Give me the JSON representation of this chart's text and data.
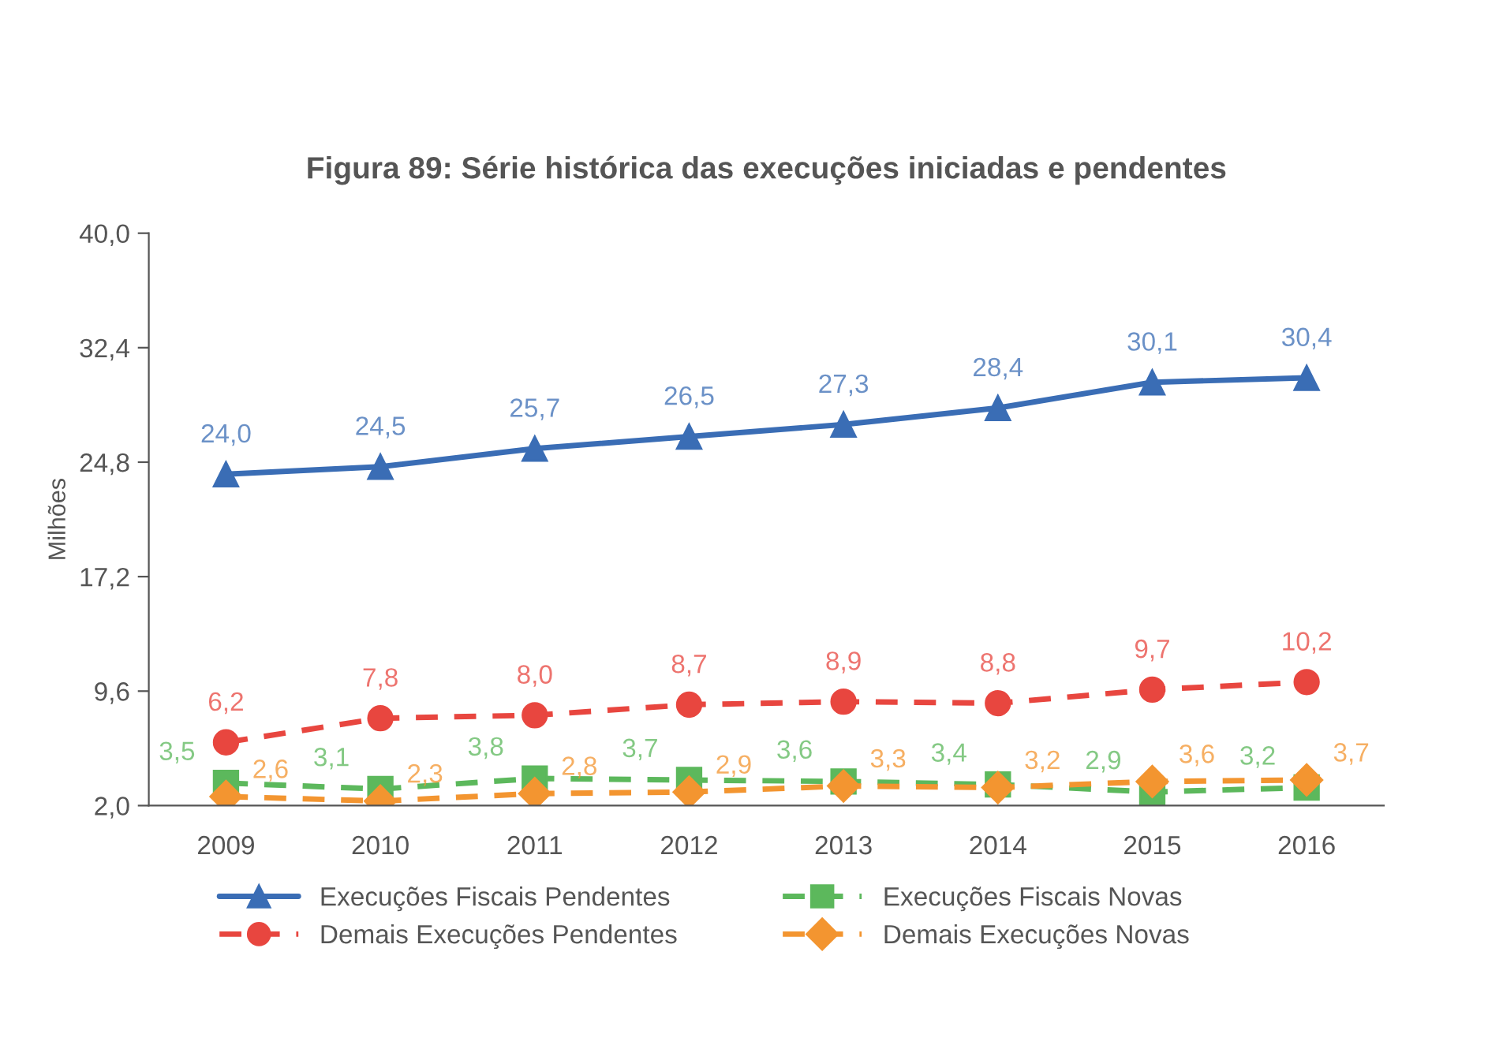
{
  "chart_data": {
    "type": "line",
    "title": "Figura 89: Série histórica das execuções iniciadas e pendentes",
    "ylabel": "Milhões",
    "categories": [
      "2009",
      "2010",
      "2011",
      "2012",
      "2013",
      "2014",
      "2015",
      "2016"
    ],
    "ylim": [
      2.0,
      40.0
    ],
    "yticks": [
      {
        "value": 2.0,
        "label": "2,0"
      },
      {
        "value": 9.6,
        "label": "9,6"
      },
      {
        "value": 17.2,
        "label": "17,2"
      },
      {
        "value": 24.8,
        "label": "24,8"
      },
      {
        "value": 32.4,
        "label": "32,4"
      },
      {
        "value": 40.0,
        "label": "40,0"
      }
    ],
    "grid": false,
    "legend": "bottom",
    "series": [
      {
        "name": "Execuções Fiscais Pendentes",
        "color": "#3a6db5",
        "marker": "triangle",
        "line_style": "solid",
        "values": [
          24.0,
          24.5,
          25.7,
          26.5,
          27.3,
          28.4,
          30.1,
          30.4
        ],
        "value_labels": [
          "24,0",
          "24,5",
          "25,7",
          "26,5",
          "27,3",
          "28,4",
          "30,1",
          "30,4"
        ]
      },
      {
        "name": "Demais Execuções Pendentes",
        "color": "#e8463f",
        "marker": "circle",
        "line_style": "dashed",
        "values": [
          6.2,
          7.8,
          8.0,
          8.7,
          8.9,
          8.8,
          9.7,
          10.2
        ],
        "value_labels": [
          "6,2",
          "7,8",
          "8,0",
          "8,7",
          "8,9",
          "8,8",
          "9,7",
          "10,2"
        ]
      },
      {
        "name": "Execuções Fiscais Novas",
        "color": "#5cb85c",
        "marker": "square",
        "line_style": "dashed",
        "values": [
          3.5,
          3.1,
          3.8,
          3.7,
          3.6,
          3.4,
          2.9,
          3.2
        ],
        "value_labels": [
          "3,5",
          "3,1",
          "3,8",
          "3,7",
          "3,6",
          "3,4",
          "2,9",
          "3,2"
        ]
      },
      {
        "name": "Demais Execuções Novas",
        "color": "#f39530",
        "marker": "diamond",
        "line_style": "dashed",
        "values": [
          2.6,
          2.3,
          2.8,
          2.9,
          3.3,
          3.2,
          3.6,
          3.7
        ],
        "value_labels": [
          "2,6",
          "2,3",
          "2,8",
          "2,9",
          "3,3",
          "3,2",
          "3,6",
          "3,7"
        ]
      }
    ]
  }
}
